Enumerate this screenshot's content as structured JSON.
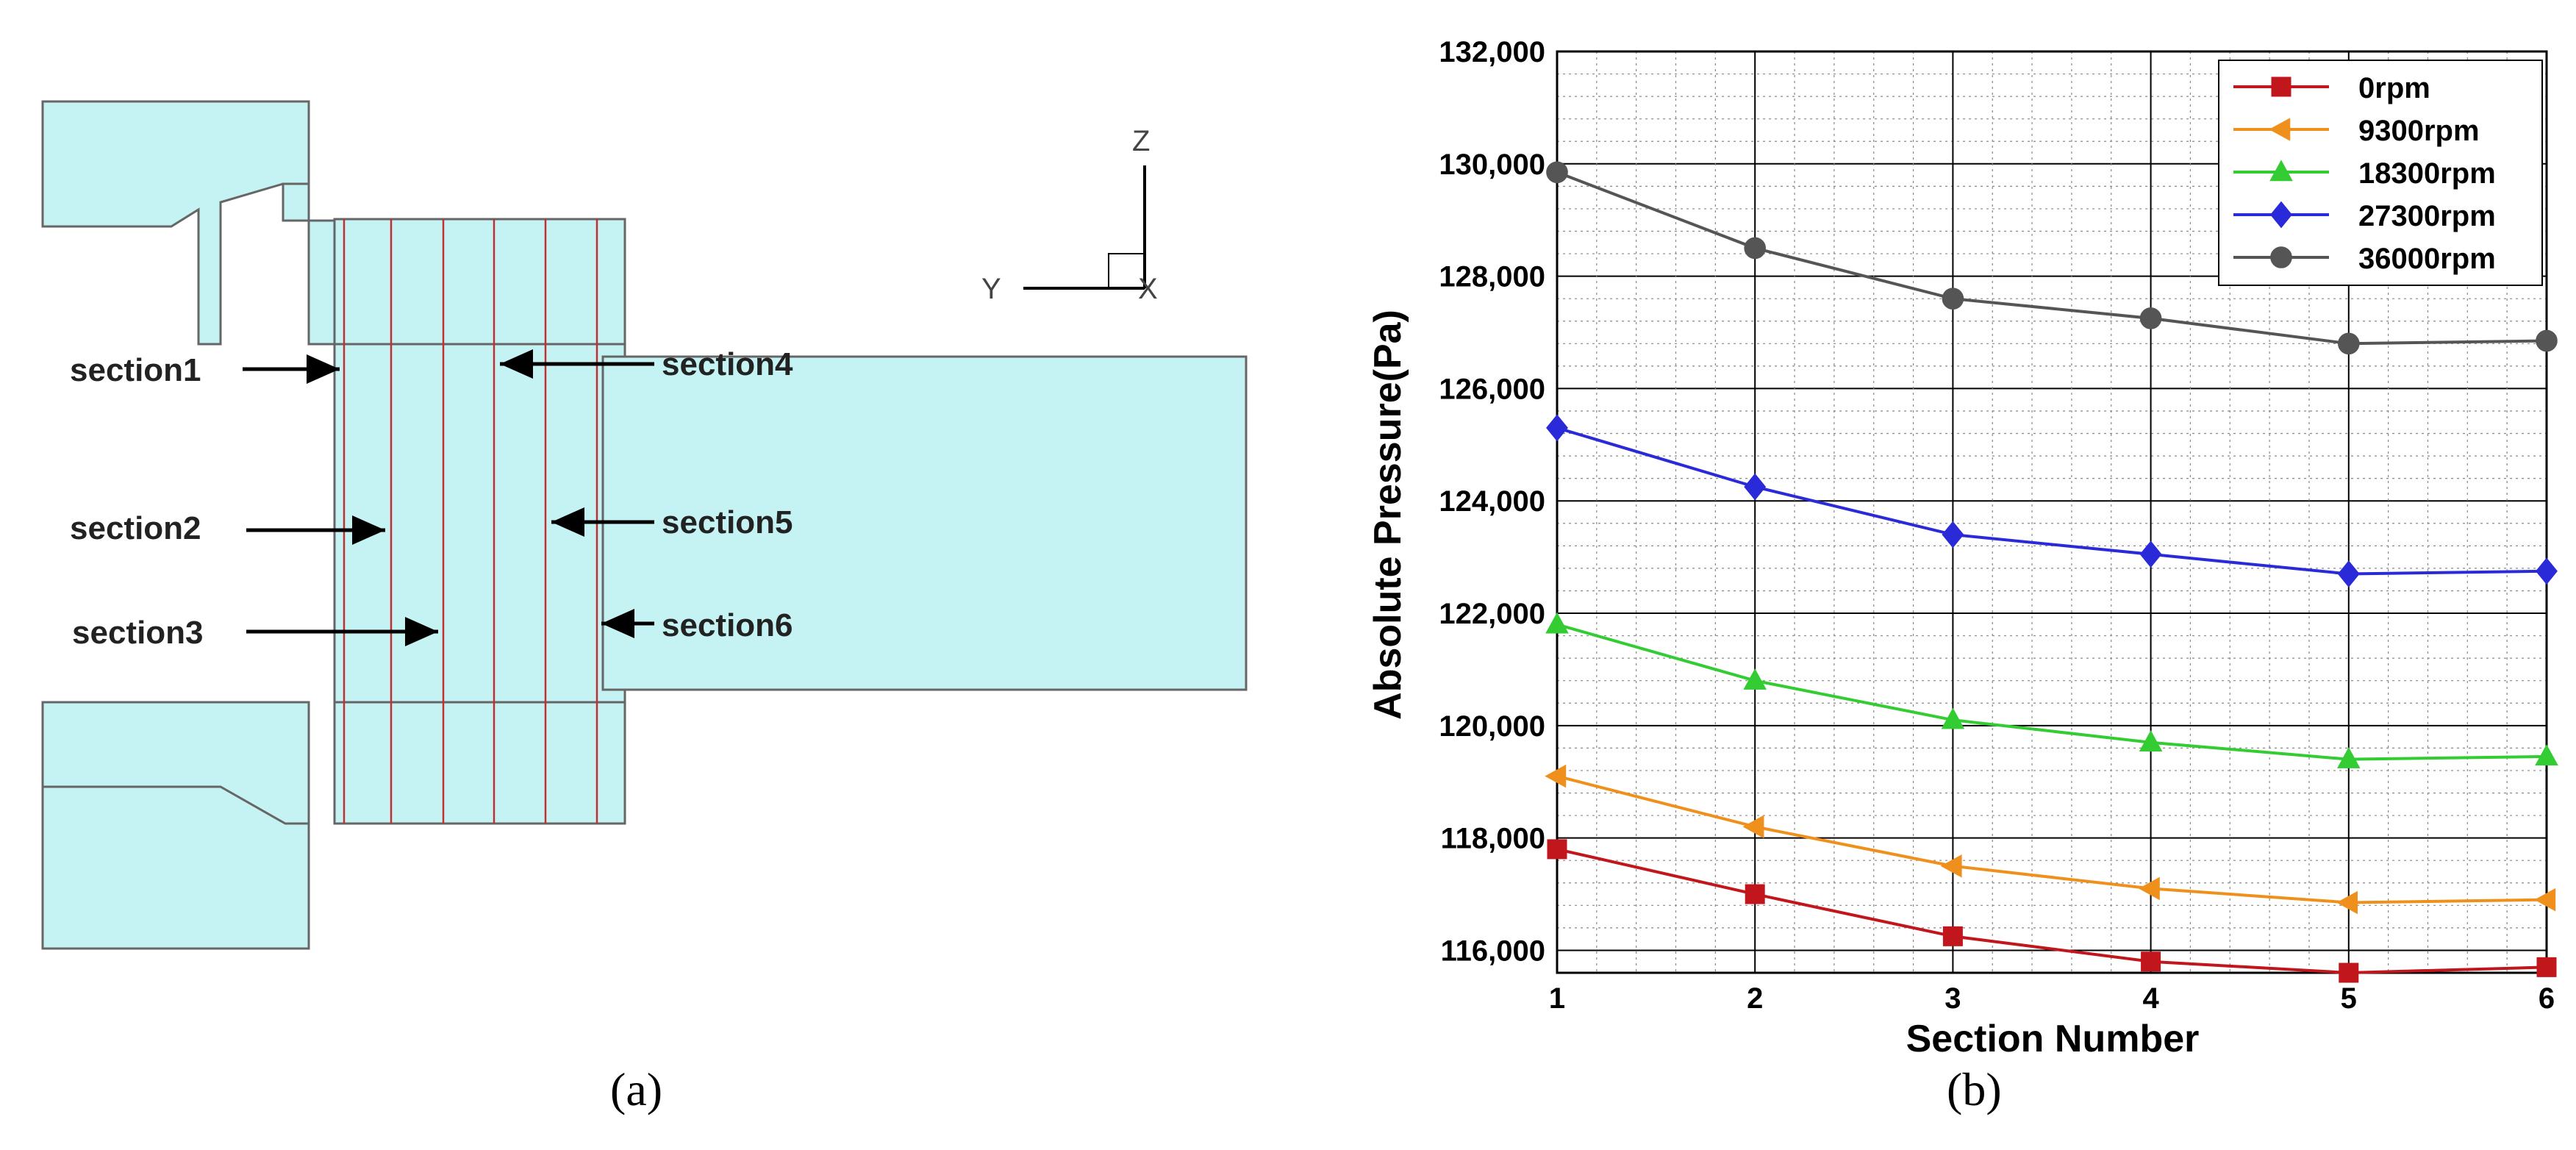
{
  "panel_a": {
    "caption": "(a)",
    "axes": {
      "z": "Z",
      "y": "Y",
      "x": "X"
    },
    "sections": [
      "section1",
      "section2",
      "section3",
      "section4",
      "section5",
      "section6"
    ],
    "colors": {
      "fluid": "#c5f3f3",
      "outline": "#666666",
      "section_lines": "#c03030"
    }
  },
  "panel_b": {
    "caption": "(b)"
  },
  "chart_data": {
    "type": "line",
    "xlabel": "Section Number",
    "ylabel": "Absolute Pressure(Pa)",
    "x": [
      1,
      2,
      3,
      4,
      5,
      6
    ],
    "xlim": [
      1,
      6
    ],
    "ylim": [
      115600,
      132000
    ],
    "xticks": [
      "1",
      "2",
      "3",
      "4",
      "5",
      "6"
    ],
    "yticks": [
      116000,
      118000,
      120000,
      122000,
      124000,
      126000,
      128000,
      130000,
      132000
    ],
    "ytick_labels": [
      "116,000",
      "118,000",
      "120,000",
      "122,000",
      "124,000",
      "126,000",
      "128,000",
      "130,000",
      "132,000"
    ],
    "grid": true,
    "legend_position": "top-right",
    "series": [
      {
        "name": "0rpm",
        "color": "#c0161c",
        "marker": "square",
        "values": [
          117800,
          117000,
          116250,
          115800,
          115600,
          115700
        ]
      },
      {
        "name": "9300rpm",
        "color": "#f0901c",
        "marker": "triangle-left",
        "values": [
          119100,
          118200,
          117500,
          117100,
          116850,
          116900
        ]
      },
      {
        "name": "18300rpm",
        "color": "#33cc33",
        "marker": "triangle-up",
        "values": [
          121800,
          120800,
          120100,
          119700,
          119400,
          119450
        ]
      },
      {
        "name": "27300rpm",
        "color": "#2a2ad8",
        "marker": "diamond",
        "values": [
          125300,
          124250,
          123400,
          123050,
          122700,
          122750
        ]
      },
      {
        "name": "36000rpm",
        "color": "#555555",
        "marker": "circle",
        "values": [
          129850,
          128500,
          127600,
          127250,
          126800,
          126850
        ]
      }
    ]
  }
}
